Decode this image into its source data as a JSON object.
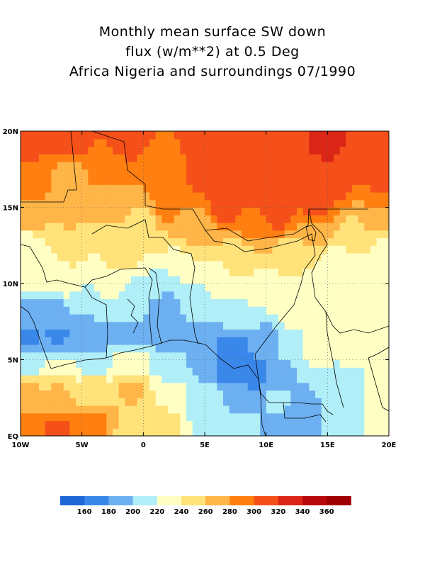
{
  "title_lines": [
    "Monthly mean surface SW down",
    "flux (w/m**2) at 0.5 Deg",
    "Africa Nigeria and surroundings 07/1990"
  ],
  "axes": {
    "lon_min": -10,
    "lon_max": 20,
    "lat_min": 0,
    "lat_max": 20,
    "x_ticks": [
      {
        "value": -10,
        "label": "10W"
      },
      {
        "value": -5,
        "label": "5W"
      },
      {
        "value": 0,
        "label": "0"
      },
      {
        "value": 5,
        "label": "5E"
      },
      {
        "value": 10,
        "label": "10E"
      },
      {
        "value": 15,
        "label": "15E"
      },
      {
        "value": 20,
        "label": "20E"
      }
    ],
    "y_ticks": [
      {
        "value": 0,
        "label": "EQ"
      },
      {
        "value": 5,
        "label": "5N"
      },
      {
        "value": 10,
        "label": "10N"
      },
      {
        "value": 15,
        "label": "15N"
      },
      {
        "value": 20,
        "label": "20N"
      }
    ]
  },
  "colorbar": {
    "colors": [
      "#1f66d6",
      "#3a87ea",
      "#6db0f2",
      "#b0eef8",
      "#ffffc4",
      "#ffe27a",
      "#ffb547",
      "#ff7f10",
      "#f5501a",
      "#db2617",
      "#b8080c",
      "#a00004"
    ],
    "labels": [
      "160",
      "180",
      "200",
      "220",
      "240",
      "260",
      "280",
      "300",
      "320",
      "340",
      "360"
    ]
  },
  "chart_data": {
    "type": "heatmap",
    "variable": "Monthly mean surface SW down flux (w/m**2)",
    "region": "Africa Nigeria and surroundings",
    "date": "07/1990",
    "resolution_deg": 0.5,
    "lon_range": [
      -10,
      20
    ],
    "lat_range": [
      0,
      20
    ],
    "levels": [
      160,
      180,
      200,
      220,
      240,
      260,
      280,
      300,
      320,
      340,
      360
    ],
    "value_min": 150,
    "value_max": 370,
    "anchors": [
      {
        "lon": -9.5,
        "lat": 19.5,
        "v": 305
      },
      {
        "lon": -6,
        "lat": 19.5,
        "v": 315
      },
      {
        "lon": -1,
        "lat": 19.5,
        "v": 310
      },
      {
        "lon": 5,
        "lat": 19.5,
        "v": 310
      },
      {
        "lon": 10,
        "lat": 19.5,
        "v": 320
      },
      {
        "lon": 15,
        "lat": 19.5,
        "v": 322
      },
      {
        "lon": 19.5,
        "lat": 19.5,
        "v": 315
      },
      {
        "lon": -6,
        "lat": 17.2,
        "v": 275
      },
      {
        "lon": -3,
        "lat": 17.5,
        "v": 295
      },
      {
        "lon": 1,
        "lat": 17.5,
        "v": 283
      },
      {
        "lon": 5,
        "lat": 17.2,
        "v": 305
      },
      {
        "lon": 10,
        "lat": 17.0,
        "v": 318
      },
      {
        "lon": 15,
        "lat": 17.0,
        "v": 320
      },
      {
        "lon": 19.5,
        "lat": 17.0,
        "v": 305
      },
      {
        "lon": -9.5,
        "lat": 16.5,
        "v": 295
      },
      {
        "lon": -3,
        "lat": 15.8,
        "v": 270
      },
      {
        "lon": 2,
        "lat": 15.3,
        "v": 288
      },
      {
        "lon": 7,
        "lat": 15.2,
        "v": 310
      },
      {
        "lon": 11,
        "lat": 14.8,
        "v": 312
      },
      {
        "lon": 14,
        "lat": 15.0,
        "v": 305
      },
      {
        "lon": 19.5,
        "lat": 14.8,
        "v": 280
      },
      {
        "lon": -9.5,
        "lat": 14.3,
        "v": 275
      },
      {
        "lon": -6,
        "lat": 14.5,
        "v": 262
      },
      {
        "lon": 0,
        "lat": 14.0,
        "v": 258
      },
      {
        "lon": 4,
        "lat": 13.5,
        "v": 268
      },
      {
        "lon": 9,
        "lat": 13.5,
        "v": 282
      },
      {
        "lon": 14,
        "lat": 13.5,
        "v": 265
      },
      {
        "lon": 17,
        "lat": 13.2,
        "v": 255
      },
      {
        "lon": -9.5,
        "lat": 12.5,
        "v": 228
      },
      {
        "lon": -6,
        "lat": 12.3,
        "v": 242
      },
      {
        "lon": -2,
        "lat": 12.0,
        "v": 246
      },
      {
        "lon": 3,
        "lat": 11.5,
        "v": 238
      },
      {
        "lon": 8,
        "lat": 11.8,
        "v": 252
      },
      {
        "lon": 12,
        "lat": 11.5,
        "v": 245
      },
      {
        "lon": 16,
        "lat": 11.5,
        "v": 228
      },
      {
        "lon": 19.5,
        "lat": 12.0,
        "v": 238
      },
      {
        "lon": -9.5,
        "lat": 10.0,
        "v": 222
      },
      {
        "lon": -7,
        "lat": 10.2,
        "v": 238
      },
      {
        "lon": -3,
        "lat": 10.0,
        "v": 232
      },
      {
        "lon": 2,
        "lat": 9.8,
        "v": 215
      },
      {
        "lon": 6,
        "lat": 9.8,
        "v": 222
      },
      {
        "lon": 10,
        "lat": 9.8,
        "v": 235
      },
      {
        "lon": 13,
        "lat": 9.5,
        "v": 228
      },
      {
        "lon": 16,
        "lat": 9.8,
        "v": 222
      },
      {
        "lon": 19.5,
        "lat": 9.8,
        "v": 225
      },
      {
        "lon": -9.5,
        "lat": 8.2,
        "v": 190
      },
      {
        "lon": -7.5,
        "lat": 8.5,
        "v": 195
      },
      {
        "lon": -4,
        "lat": 8.5,
        "v": 200
      },
      {
        "lon": -1,
        "lat": 8.5,
        "v": 202
      },
      {
        "lon": 2,
        "lat": 8.8,
        "v": 192
      },
      {
        "lon": 5,
        "lat": 8.2,
        "v": 212
      },
      {
        "lon": 8,
        "lat": 8.0,
        "v": 218
      },
      {
        "lon": 12,
        "lat": 7.5,
        "v": 222
      },
      {
        "lon": 14,
        "lat": 7.5,
        "v": 240
      },
      {
        "lon": 17,
        "lat": 7.5,
        "v": 225
      },
      {
        "lon": 19.5,
        "lat": 7.5,
        "v": 225
      },
      {
        "lon": -9.5,
        "lat": 6.5,
        "v": 175
      },
      {
        "lon": -7,
        "lat": 6.5,
        "v": 178
      },
      {
        "lon": -4,
        "lat": 6.2,
        "v": 190
      },
      {
        "lon": -1,
        "lat": 6.5,
        "v": 188
      },
      {
        "lon": 2,
        "lat": 6.5,
        "v": 195
      },
      {
        "lon": 5,
        "lat": 6.5,
        "v": 180
      },
      {
        "lon": 7.5,
        "lat": 5.8,
        "v": 170
      },
      {
        "lon": 10,
        "lat": 6.3,
        "v": 192
      },
      {
        "lon": 12,
        "lat": 6.0,
        "v": 205
      },
      {
        "lon": 14,
        "lat": 5.5,
        "v": 228
      },
      {
        "lon": 16.5,
        "lat": 5.5,
        "v": 222
      },
      {
        "lon": 19.5,
        "lat": 5.5,
        "v": 222
      },
      {
        "lon": -9.5,
        "lat": 5.0,
        "v": 205
      },
      {
        "lon": -7,
        "lat": 4.5,
        "v": 225
      },
      {
        "lon": -4,
        "lat": 4.8,
        "v": 212
      },
      {
        "lon": -1,
        "lat": 5.0,
        "v": 232
      },
      {
        "lon": 2,
        "lat": 4.5,
        "v": 210
      },
      {
        "lon": 5,
        "lat": 4.8,
        "v": 192
      },
      {
        "lon": 7,
        "lat": 4.5,
        "v": 170
      },
      {
        "lon": 9,
        "lat": 4.0,
        "v": 168
      },
      {
        "lon": 11,
        "lat": 4.0,
        "v": 192
      },
      {
        "lon": 13.5,
        "lat": 3.5,
        "v": 200
      },
      {
        "lon": 16,
        "lat": 3.5,
        "v": 215
      },
      {
        "lon": 19.5,
        "lat": 3.5,
        "v": 222
      },
      {
        "lon": -9.5,
        "lat": 3.0,
        "v": 268
      },
      {
        "lon": -7,
        "lat": 3.0,
        "v": 262
      },
      {
        "lon": -4,
        "lat": 3.0,
        "v": 255
      },
      {
        "lon": -1,
        "lat": 3.0,
        "v": 262
      },
      {
        "lon": 2,
        "lat": 2.8,
        "v": 240
      },
      {
        "lon": 5,
        "lat": 2.5,
        "v": 210
      },
      {
        "lon": 8,
        "lat": 2.5,
        "v": 198
      },
      {
        "lon": 11,
        "lat": 2.5,
        "v": 205
      },
      {
        "lon": 13,
        "lat": 1.8,
        "v": 185
      },
      {
        "lon": 16,
        "lat": 2.0,
        "v": 210
      },
      {
        "lon": 19.5,
        "lat": 2.0,
        "v": 222
      },
      {
        "lon": -9.5,
        "lat": 0.5,
        "v": 292
      },
      {
        "lon": -7,
        "lat": 0.5,
        "v": 302
      },
      {
        "lon": -4,
        "lat": 0.8,
        "v": 285
      },
      {
        "lon": -1,
        "lat": 0.5,
        "v": 255
      },
      {
        "lon": 2,
        "lat": 0.5,
        "v": 245
      },
      {
        "lon": 5,
        "lat": 0.8,
        "v": 215
      },
      {
        "lon": 8,
        "lat": 0.5,
        "v": 205
      },
      {
        "lon": 11,
        "lat": 0.5,
        "v": 198
      },
      {
        "lon": 13,
        "lat": 0.5,
        "v": 180
      },
      {
        "lon": 16,
        "lat": 0.5,
        "v": 210
      },
      {
        "lon": 19.5,
        "lat": 0.5,
        "v": 222
      }
    ]
  }
}
